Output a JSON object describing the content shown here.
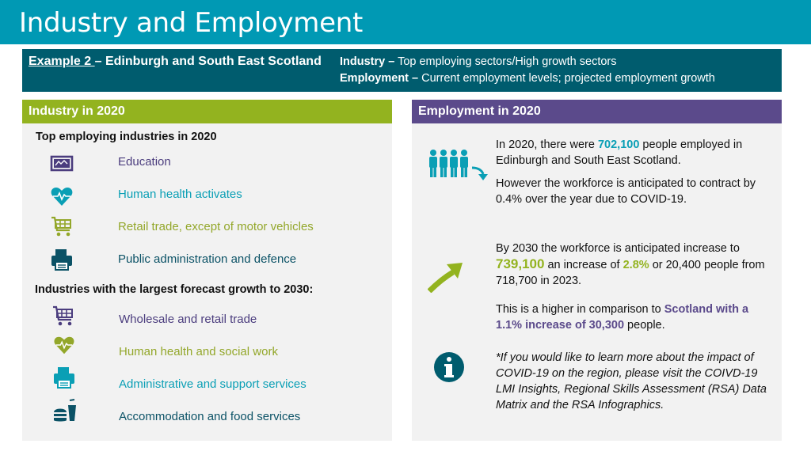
{
  "title": "Industry and Employment",
  "example": {
    "prefix": "Example 2 ",
    "name": "– Edinburgh and South East Scotland",
    "industry_label": "Industry –",
    "industry_text": " Top employing sectors/High growth sectors",
    "employment_label": "Employment –",
    "employment_text": " Current employment levels; projected employment growth"
  },
  "industry": {
    "header": "Industry in 2020",
    "top_heading": "Top employing industries in 2020",
    "top_items": [
      {
        "label": "Education",
        "icon": "presentation-board-icon",
        "color": "#4b3d7e"
      },
      {
        "label": "Human health activates",
        "icon": "heart-pulse-icon",
        "color": "#0a9fb5"
      },
      {
        "label": "Retail trade, except of motor vehicles",
        "icon": "shopping-cart-icon",
        "color": "#93a72a"
      },
      {
        "label": "Public administration and defence",
        "icon": "printer-icon",
        "color": "#0b5266"
      }
    ],
    "growth_heading": "Industries with the largest forecast growth to 2030:",
    "growth_items": [
      {
        "label": "Wholesale and retail trade",
        "icon": "shopping-cart-icon",
        "color": "#4b3d7e"
      },
      {
        "label": "Human health and social work",
        "icon": "heart-pulse-icon",
        "color": "#93a72a"
      },
      {
        "label": "Administrative and support services",
        "icon": "printer-icon",
        "color": "#0a9fb5"
      },
      {
        "label": "Accommodation and food services",
        "icon": "fast-food-icon",
        "color": "#0b5266"
      }
    ]
  },
  "employment": {
    "header": "Employment in 2020",
    "p1_a": "In 2020, there were ",
    "p1_num": "702,100",
    "p1_b": " people employed in Edinburgh and South East Scotland.",
    "p2": "However the workforce is anticipated to contract by 0.4% over the year due to COVID-19.",
    "p3_a": "By 2030 the workforce is anticipated increase to",
    "p3_num": "739,100",
    "p3_b": "  an increase of ",
    "p3_pct": "2.8%",
    "p3_c": "  or 20,400 people from 718,700 in 2023.",
    "p4_a": "This is a higher in comparison to ",
    "p4_hl": "Scotland with a 1.1% increase of 30,300",
    "p4_b": "  people.",
    "p5": "*If you would like to learn more about the impact of COVID-19 on the region, please visit the COIVD-19 LMI Insights, Regional Skills Assessment (RSA) Data Matrix and the RSA Infographics.",
    "icons": [
      "people-group-icon",
      "arrow-up-icon",
      "info-icon"
    ],
    "colors": {
      "people": "#0a9fb5",
      "arrow": "#93b31f",
      "info": "#005c6e"
    }
  }
}
